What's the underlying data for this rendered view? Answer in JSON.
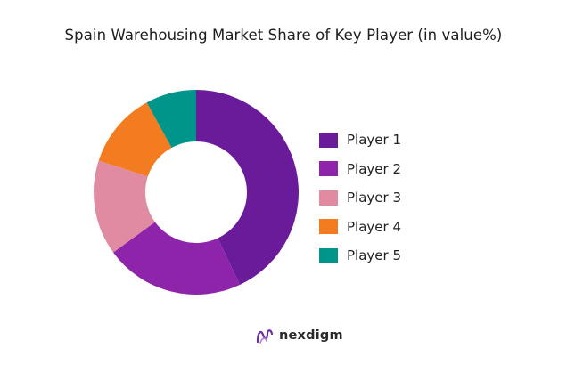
{
  "chart_data": {
    "type": "pie",
    "title": "Spain Warehousing Market Share of Key Player (in value%)",
    "categories": [
      "Player 1",
      "Player 2",
      "Player 3",
      "Player 4",
      "Player 5"
    ],
    "values": [
      43,
      22,
      15,
      12,
      8
    ],
    "colors": [
      "#6a1b9a",
      "#8e24aa",
      "#e08ba2",
      "#f47c20",
      "#00958a"
    ],
    "legend_position": "right"
  },
  "brand": {
    "name": "nexdigm",
    "icon": "nexdigm-logo-icon",
    "color": "#5b2a86"
  }
}
